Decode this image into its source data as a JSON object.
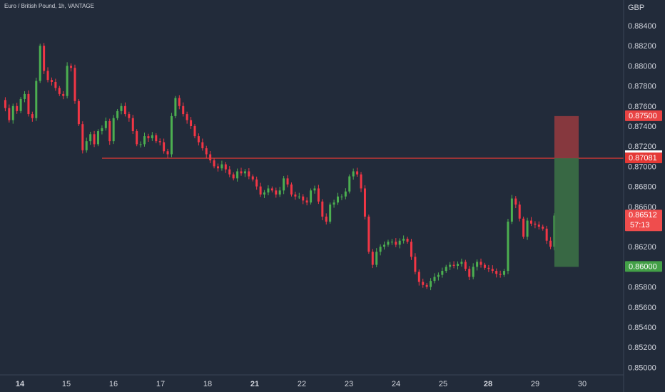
{
  "symbol_title": "Euro / British Pound, 1h, VANTAGE",
  "chart_data": {
    "type": "candlestick",
    "currency": "GBP",
    "ylim": [
      0.849,
      0.886
    ],
    "y_ticks": [
      "0.88400",
      "0.88200",
      "0.88000",
      "0.87800",
      "0.87600",
      "0.87400",
      "0.87200",
      "0.87000",
      "0.86800",
      "0.86600",
      "0.86400",
      "0.86200",
      "0.86000",
      "0.85800",
      "0.85600",
      "0.85400",
      "0.85200",
      "0.85000"
    ],
    "x_ticks": [
      {
        "label": "14",
        "bold": true
      },
      {
        "label": "15",
        "bold": false
      },
      {
        "label": "16",
        "bold": false
      },
      {
        "label": "17",
        "bold": false
      },
      {
        "label": "18",
        "bold": false
      },
      {
        "label": "21",
        "bold": true
      },
      {
        "label": "22",
        "bold": false
      },
      {
        "label": "23",
        "bold": false
      },
      {
        "label": "24",
        "bold": false
      },
      {
        "label": "25",
        "bold": false
      },
      {
        "label": "28",
        "bold": true
      },
      {
        "label": "29",
        "bold": false
      },
      {
        "label": "30",
        "bold": false
      }
    ],
    "price_path": [
      0.8766,
      0.8758,
      0.8746,
      0.876,
      0.8755,
      0.8767,
      0.8772,
      0.8752,
      0.8748,
      0.8785,
      0.882,
      0.8795,
      0.8786,
      0.8784,
      0.8778,
      0.8772,
      0.877,
      0.88,
      0.8798,
      0.8765,
      0.8742,
      0.8716,
      0.8725,
      0.8732,
      0.8722,
      0.8735,
      0.8738,
      0.8745,
      0.8725,
      0.8748,
      0.8755,
      0.876,
      0.8752,
      0.8748,
      0.8735,
      0.8722,
      0.8722,
      0.873,
      0.8728,
      0.8731,
      0.8725,
      0.8724,
      0.8715,
      0.8712,
      0.875,
      0.8768,
      0.876,
      0.8752,
      0.8746,
      0.874,
      0.873,
      0.8724,
      0.8718,
      0.8712,
      0.8706,
      0.87,
      0.8698,
      0.8702,
      0.8697,
      0.8692,
      0.8688,
      0.8695,
      0.8693,
      0.8695,
      0.869,
      0.8687,
      0.868,
      0.8672,
      0.8674,
      0.8678,
      0.8676,
      0.8672,
      0.8676,
      0.8688,
      0.8682,
      0.8672,
      0.867,
      0.867,
      0.8666,
      0.8664,
      0.8676,
      0.8678,
      0.8665,
      0.865,
      0.8645,
      0.8662,
      0.8664,
      0.867,
      0.867,
      0.8675,
      0.869,
      0.8695,
      0.8692,
      0.8678,
      0.865,
      0.8615,
      0.8602,
      0.8615,
      0.862,
      0.8622,
      0.8625,
      0.8625,
      0.8622,
      0.8626,
      0.8628,
      0.8625,
      0.861,
      0.8595,
      0.8585,
      0.8582,
      0.858,
      0.8586,
      0.859,
      0.8592,
      0.8596,
      0.86,
      0.8602,
      0.8601,
      0.8603,
      0.8605,
      0.8598,
      0.859,
      0.86,
      0.8605,
      0.8602,
      0.8599,
      0.8598,
      0.8596,
      0.8593,
      0.8592,
      0.8596,
      0.8645,
      0.8668,
      0.8662,
      0.8648,
      0.863,
      0.8646,
      0.8643,
      0.8642,
      0.864,
      0.8638,
      0.8626,
      0.862,
      0.8651
    ],
    "annotations": {
      "support_resistance_line": 0.87081,
      "stop_loss": 0.875,
      "entry": 0.87081,
      "take_profit": 0.86,
      "current_price": 0.86512
    },
    "price_labels": {
      "stop": "0.87500",
      "level": "0.87081",
      "current": "0.86512",
      "countdown": "57:13",
      "target": "0.86000"
    },
    "colors": {
      "background": "#222b3a",
      "up": "#4caf50",
      "down": "#f23645",
      "level_line": "#e53935",
      "stop_zone": "#8f3a3f",
      "target_zone": "#3a6b45"
    }
  }
}
